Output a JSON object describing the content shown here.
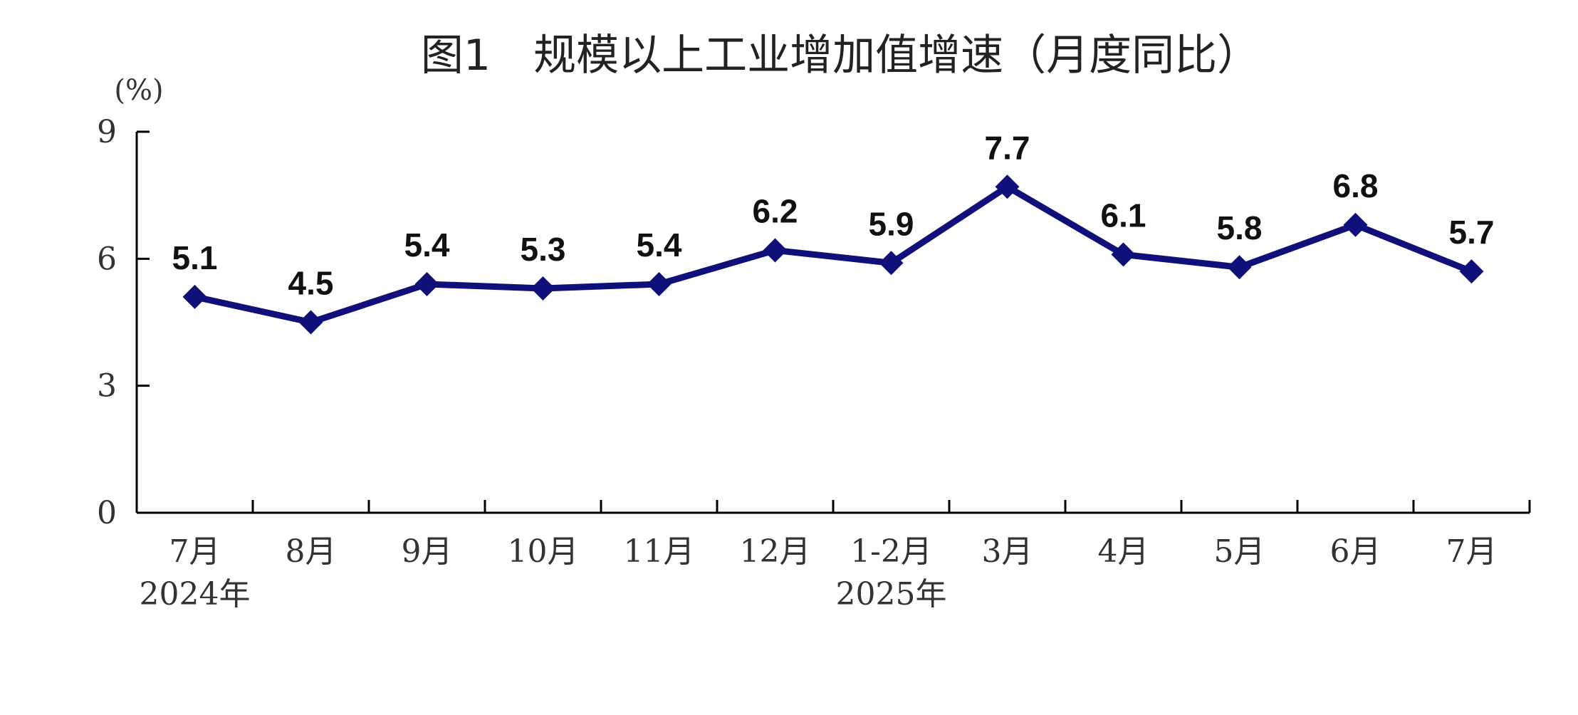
{
  "chart_data": {
    "type": "line",
    "title": "图1　规模以上工业增加值增速（月度同比）",
    "ylabel": "(%)",
    "xlabel": "",
    "ylim": [
      0,
      9
    ],
    "yticks": [
      "0",
      "3",
      "6",
      "9"
    ],
    "categories": [
      "7月",
      "8月",
      "9月",
      "10月",
      "11月",
      "12月",
      "1-2月",
      "3月",
      "4月",
      "5月",
      "6月",
      "7月"
    ],
    "year_labels": [
      {
        "text": "2024年",
        "category_index": 0
      },
      {
        "text": "2025年",
        "category_index": 6
      }
    ],
    "series": [
      {
        "values": [
          5.1,
          4.5,
          5.4,
          5.3,
          5.4,
          6.2,
          5.9,
          7.7,
          6.1,
          5.8,
          6.8,
          5.7
        ],
        "labels": [
          "5.1",
          "4.5",
          "5.4",
          "5.3",
          "5.4",
          "6.2",
          "5.9",
          "7.7",
          "6.1",
          "5.8",
          "6.8",
          "5.7"
        ],
        "color": "#10107a",
        "marker": "diamond"
      }
    ],
    "grid": false,
    "legend": "none"
  }
}
